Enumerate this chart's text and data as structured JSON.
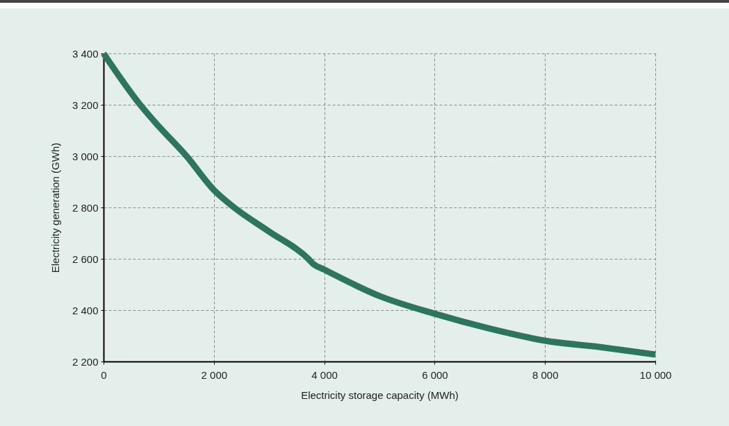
{
  "chart_data": {
    "type": "line",
    "xlabel": "Electricity storage capacity (MWh)",
    "ylabel": "Electricity generation (GWh)",
    "x": [
      0,
      664,
      1000,
      1504,
      2000,
      2366,
      3000,
      3710,
      3800,
      4000,
      5000,
      6000,
      7000,
      8000,
      9000,
      10000
    ],
    "series": [
      {
        "color": "#2e7560",
        "values": [
          3400,
          3200,
          3116,
          3000,
          2868,
          2800,
          2706,
          2600,
          2580,
          2558,
          2455,
          2386,
          2328,
          2281,
          2256,
          2227
        ]
      }
    ],
    "xlim": [
      0,
      10000
    ],
    "ylim": [
      2200,
      3400
    ],
    "xticks": [
      0,
      {
        "value": 2000,
        "label": "2 000"
      },
      {
        "value": 4000,
        "label": "4 000"
      },
      {
        "value": 6000,
        "label": "6 000"
      },
      {
        "value": 8000,
        "label": "8 000"
      },
      {
        "value": 10000,
        "label": "10 000"
      }
    ],
    "yticks": [
      {
        "value": 2200,
        "label": "2 200"
      },
      {
        "value": 2400,
        "label": "2 400"
      },
      {
        "value": 2600,
        "label": "2 600"
      },
      {
        "value": 2800,
        "label": "2 800"
      },
      {
        "value": 3000,
        "label": "3 000"
      },
      {
        "value": 3200,
        "label": "3 200"
      },
      {
        "value": 3400,
        "label": "3 400"
      }
    ],
    "grid": true,
    "marker": "none",
    "line_style": "solid"
  }
}
